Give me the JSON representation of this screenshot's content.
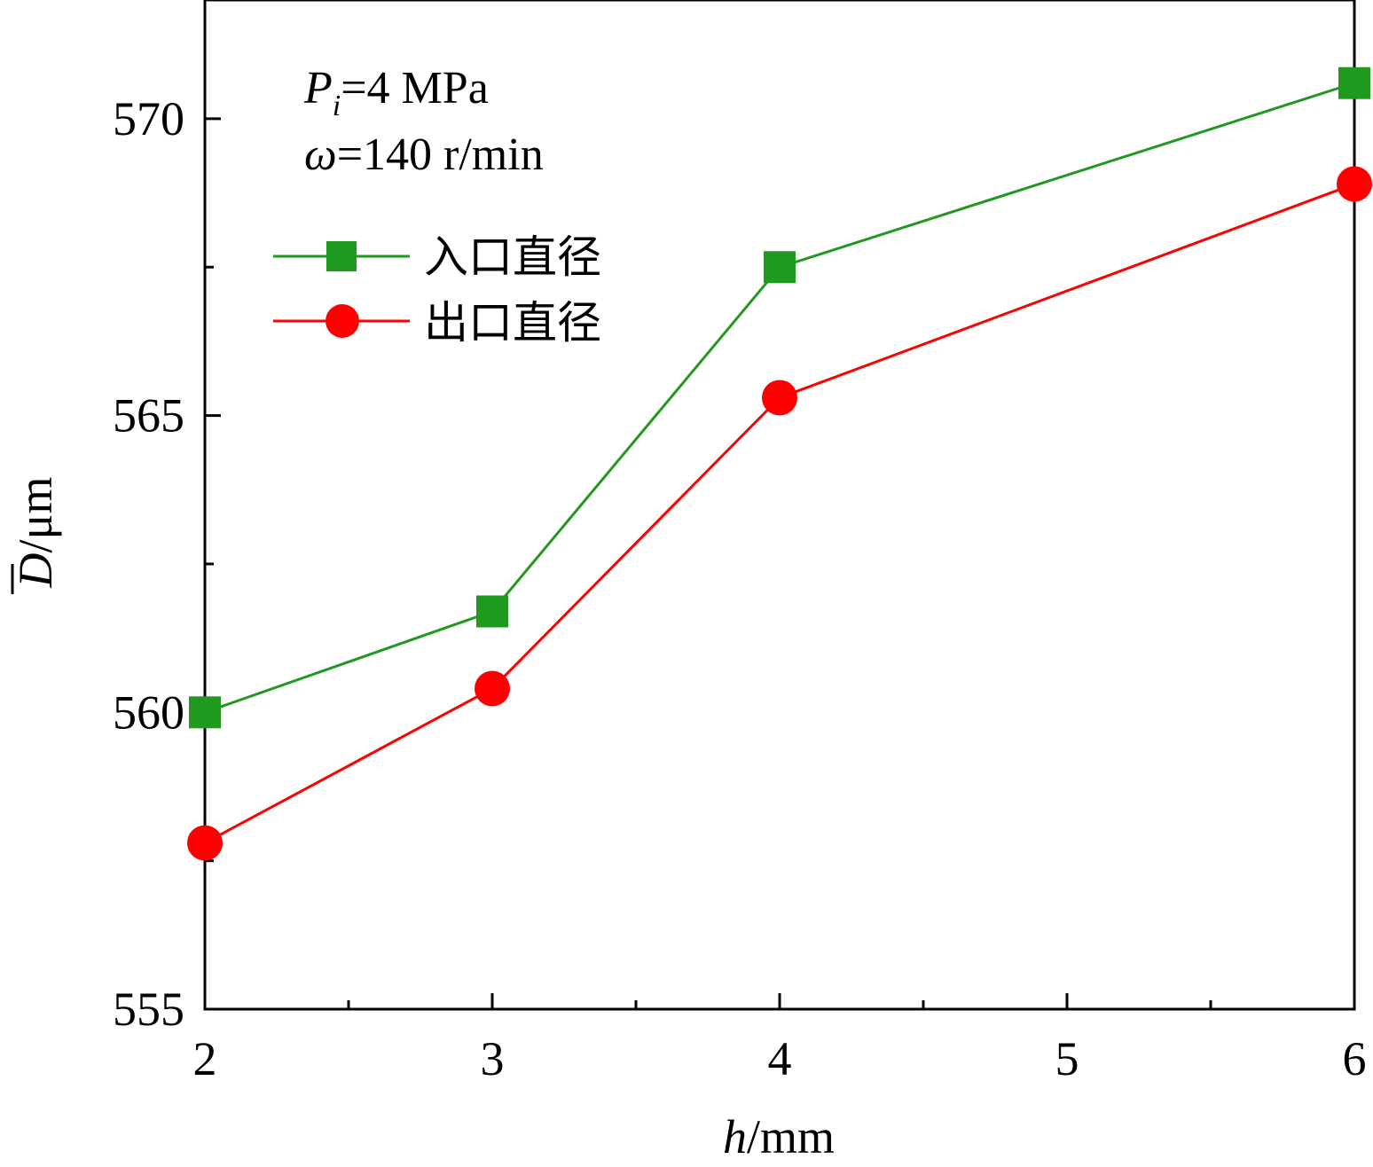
{
  "chart_data": {
    "type": "line",
    "x": [
      2,
      3,
      4,
      6
    ],
    "xlim": [
      2,
      6
    ],
    "ylim": [
      555,
      572
    ],
    "xticks": [
      2,
      3,
      4,
      5,
      6
    ],
    "yticks": [
      555,
      560,
      565,
      570
    ],
    "xlabel_italic": "h",
    "xlabel_rest": "/mm",
    "ylabel_italic": "D",
    "ylabel_rest": "/μm",
    "annotation": {
      "line1_var": "P",
      "line1_sub": "i",
      "line1_rest": "=4 MPa",
      "line2_var": "ω",
      "line2_rest": "=140 r/min"
    },
    "legend_position": "upper-left",
    "series": [
      {
        "name": "入口直径",
        "values": [
          560.0,
          561.7,
          567.5,
          570.6
        ],
        "color": "#1f9a1f",
        "marker": "square"
      },
      {
        "name": "出口直径",
        "values": [
          557.8,
          560.4,
          565.3,
          568.9
        ],
        "color": "#ff0000",
        "marker": "circle"
      }
    ]
  }
}
